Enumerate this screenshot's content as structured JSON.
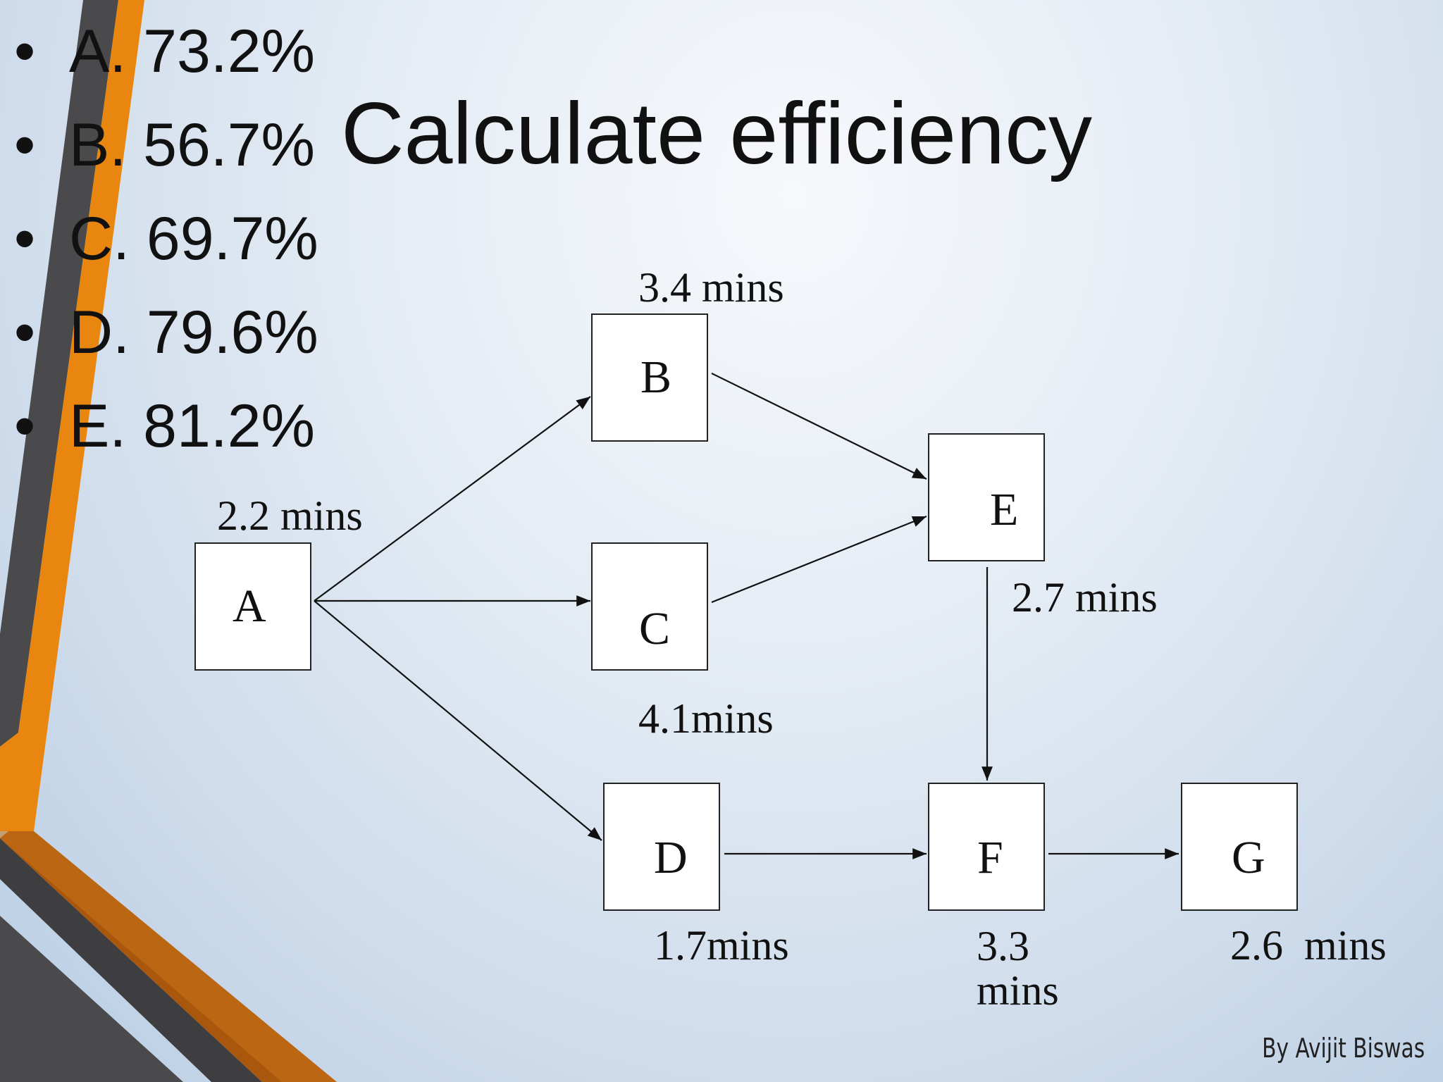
{
  "slide": {
    "title": "Calculate efficiency",
    "credit": "By Avijit Biswas"
  },
  "options": [
    {
      "bullet": "•",
      "text": "A. 73.2%"
    },
    {
      "bullet": "•",
      "text": "B. 56.7%"
    },
    {
      "bullet": "•",
      "text": "C. 69.7%"
    },
    {
      "bullet": "•",
      "text": "D. 79.6%"
    },
    {
      "bullet": "•",
      "text": "E. 81.2%"
    }
  ],
  "diagram": {
    "nodes": {
      "A": {
        "label": "A",
        "time": "2.2 mins"
      },
      "B": {
        "label": "B",
        "time": "3.4 mins"
      },
      "C": {
        "label": "C",
        "time": "4.1mins"
      },
      "D": {
        "label": "D",
        "time": "1.7mins"
      },
      "E": {
        "label": "E",
        "time": "2.7 mins"
      },
      "F": {
        "label": "F",
        "time": "3.3 mins"
      },
      "G": {
        "label": "G",
        "time": "2.6  mins"
      }
    },
    "edges": [
      {
        "from": "A",
        "to": "B"
      },
      {
        "from": "A",
        "to": "C"
      },
      {
        "from": "A",
        "to": "D"
      },
      {
        "from": "B",
        "to": "E"
      },
      {
        "from": "C",
        "to": "E"
      },
      {
        "from": "E",
        "to": "F"
      },
      {
        "from": "D",
        "to": "F"
      },
      {
        "from": "F",
        "to": "G"
      }
    ]
  },
  "colors": {
    "accent_orange": "#e8860f",
    "accent_dark": "#4a4a4d",
    "box_fill": "#ffffff",
    "text": "#111111"
  }
}
